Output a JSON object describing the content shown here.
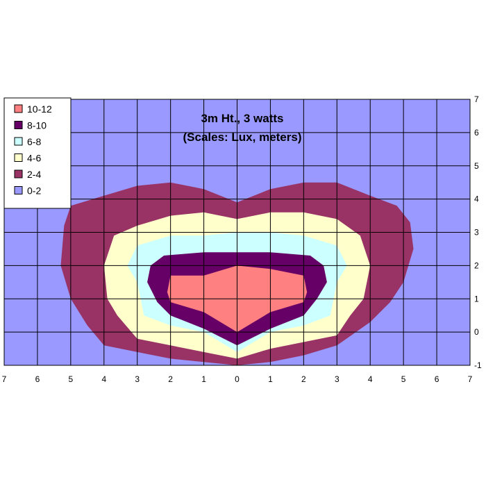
{
  "chart_data": {
    "type": "contour",
    "title": "3m Ht., 3 watts",
    "subtitle": "(Scales: Lux, meters)",
    "xlim": [
      -7,
      7
    ],
    "ylim": [
      -1,
      7
    ],
    "x_ticks": [
      -7,
      -6,
      -5,
      -4,
      -3,
      -2,
      -1,
      0,
      1,
      2,
      3,
      4,
      5,
      6,
      7
    ],
    "x_tick_labels": [
      "7",
      "6",
      "5",
      "4",
      "3",
      "2",
      "1",
      "0",
      "1",
      "2",
      "3",
      "4",
      "5",
      "6",
      "7"
    ],
    "y_ticks": [
      -1,
      0,
      1,
      2,
      3,
      4,
      5,
      6,
      7
    ],
    "y_tick_labels": [
      "-1",
      "0",
      "1",
      "2",
      "3",
      "4",
      "5",
      "6",
      "7"
    ],
    "grid": true,
    "legend_position": "top-left",
    "bands": [
      {
        "label": "10-12",
        "color": "#ff8080",
        "polygon": [
          [
            -2,
            1.7
          ],
          [
            -1,
            1.7
          ],
          [
            0,
            2
          ],
          [
            1,
            1.9
          ],
          [
            2,
            1.7
          ],
          [
            2.1,
            1.2
          ],
          [
            2,
            0.9
          ],
          [
            1,
            0.6
          ],
          [
            0,
            0
          ],
          [
            -1,
            0.6
          ],
          [
            -2,
            0.9
          ],
          [
            -2.1,
            1.2
          ]
        ]
      },
      {
        "label": "8-10",
        "color": "#660066",
        "polygon": [
          [
            -2.2,
            2.3
          ],
          [
            -1,
            2.4
          ],
          [
            0,
            2.4
          ],
          [
            1,
            2.4
          ],
          [
            2.2,
            2.3
          ],
          [
            2.6,
            2
          ],
          [
            2.7,
            1.5
          ],
          [
            2.4,
            1
          ],
          [
            2,
            0.5
          ],
          [
            1,
            0.1
          ],
          [
            0,
            -0.4
          ],
          [
            -1,
            0.1
          ],
          [
            -2,
            0.5
          ],
          [
            -2.4,
            0.9
          ],
          [
            -2.7,
            1.5
          ],
          [
            -2.6,
            2
          ]
        ]
      },
      {
        "label": "6-8",
        "color": "#ccffff",
        "polygon": [
          [
            -3,
            2.6
          ],
          [
            -2,
            2.9
          ],
          [
            -1,
            2.9
          ],
          [
            0,
            3
          ],
          [
            1,
            3
          ],
          [
            2,
            2.9
          ],
          [
            3,
            2.6
          ],
          [
            3.3,
            2
          ],
          [
            3,
            1.5
          ],
          [
            2.8,
            0.5
          ],
          [
            2,
            0.2
          ],
          [
            1,
            0
          ],
          [
            0,
            -0.6
          ],
          [
            -1,
            0
          ],
          [
            -2,
            0.2
          ],
          [
            -2.8,
            0.5
          ],
          [
            -3,
            1.5
          ],
          [
            -3.3,
            2
          ]
        ]
      },
      {
        "label": "4-6",
        "color": "#ffffcc",
        "polygon": [
          [
            -3,
            3.2
          ],
          [
            -2,
            3.5
          ],
          [
            -1,
            3.6
          ],
          [
            0,
            3.4
          ],
          [
            1,
            3.6
          ],
          [
            2,
            3.6
          ],
          [
            3,
            3.4
          ],
          [
            3.7,
            2.9
          ],
          [
            4,
            2
          ],
          [
            3.8,
            1
          ],
          [
            3.4,
            0.5
          ],
          [
            3,
            -0.1
          ],
          [
            2,
            -0.3
          ],
          [
            1,
            -0.5
          ],
          [
            0,
            -0.8
          ],
          [
            -1,
            -0.6
          ],
          [
            -2,
            -0.4
          ],
          [
            -3,
            -0.2
          ],
          [
            -3.6,
            0.5
          ],
          [
            -3.9,
            1
          ],
          [
            -4,
            2
          ],
          [
            -3.7,
            2.9
          ]
        ]
      },
      {
        "label": "2-4",
        "color": "#993366",
        "polygon": [
          [
            -5,
            3.8
          ],
          [
            -4,
            4.1
          ],
          [
            -3,
            4.4
          ],
          [
            -2,
            4.5
          ],
          [
            -1,
            4.3
          ],
          [
            0,
            3.9
          ],
          [
            1,
            4.3
          ],
          [
            2,
            4.5
          ],
          [
            3,
            4.5
          ],
          [
            4,
            4.1
          ],
          [
            4.8,
            3.8
          ],
          [
            5.2,
            3.3
          ],
          [
            5.3,
            2.5
          ],
          [
            5,
            1.5
          ],
          [
            4.6,
            0.9
          ],
          [
            4,
            0.3
          ],
          [
            3,
            -0.4
          ],
          [
            2,
            -0.7
          ],
          [
            1,
            -0.9
          ],
          [
            0,
            -1
          ],
          [
            -1,
            -0.9
          ],
          [
            -2,
            -0.8
          ],
          [
            -3,
            -0.6
          ],
          [
            -4,
            -0.4
          ],
          [
            -4.5,
            0.2
          ],
          [
            -5,
            1
          ],
          [
            -5.3,
            2
          ],
          [
            -5.2,
            3.2
          ]
        ]
      }
    ],
    "background_band": {
      "label": "0-2",
      "color": "#9999ff"
    },
    "legend": [
      {
        "label": "10-12",
        "color": "#ff8080"
      },
      {
        "label": "8-10",
        "color": "#660066"
      },
      {
        "label": "6-8",
        "color": "#ccffff"
      },
      {
        "label": "4-6",
        "color": "#ffffcc"
      },
      {
        "label": "2-4",
        "color": "#993366"
      },
      {
        "label": "0-2",
        "color": "#9999ff"
      }
    ]
  }
}
